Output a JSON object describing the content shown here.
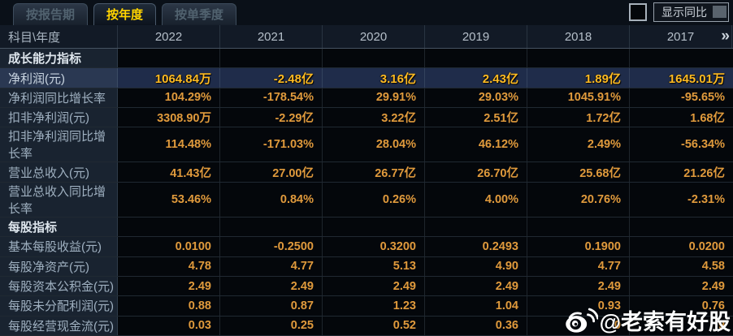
{
  "tabs": [
    {
      "label": "按报告期",
      "active": false
    },
    {
      "label": "按年度",
      "active": true
    },
    {
      "label": "按单季度",
      "active": false
    }
  ],
  "controls": {
    "show_yoy_label": "显示同比",
    "checkbox_checked": false
  },
  "table": {
    "corner_label": "科目\\年度",
    "years": [
      "2022",
      "2021",
      "2020",
      "2019",
      "2018",
      "2017"
    ],
    "more_columns_glyph": "»",
    "rows": [
      {
        "type": "section",
        "label": "成长能力指标"
      },
      {
        "type": "data",
        "label": "净利润(元)",
        "highlight": true,
        "values": [
          "1064.84万",
          "-2.48亿",
          "3.16亿",
          "2.43亿",
          "1.89亿",
          "1645.01万"
        ]
      },
      {
        "type": "data",
        "label": "净利润同比增长率",
        "values": [
          "104.29%",
          "-178.54%",
          "29.91%",
          "29.03%",
          "1045.91%",
          "-95.65%"
        ]
      },
      {
        "type": "data",
        "label": "扣非净利润(元)",
        "values": [
          "3308.90万",
          "-2.29亿",
          "3.22亿",
          "2.51亿",
          "1.72亿",
          "1.68亿"
        ]
      },
      {
        "type": "data",
        "label": "扣非净利润同比增长率",
        "values": [
          "114.48%",
          "-171.03%",
          "28.04%",
          "46.12%",
          "2.49%",
          "-56.34%"
        ]
      },
      {
        "type": "data",
        "label": "营业总收入(元)",
        "values": [
          "41.43亿",
          "27.00亿",
          "26.77亿",
          "26.70亿",
          "25.68亿",
          "21.26亿"
        ]
      },
      {
        "type": "data",
        "label": "营业总收入同比增长率",
        "values": [
          "53.46%",
          "0.84%",
          "0.26%",
          "4.00%",
          "20.76%",
          "-2.31%"
        ]
      },
      {
        "type": "section",
        "label": "每股指标"
      },
      {
        "type": "data",
        "label": "基本每股收益(元)",
        "values": [
          "0.0100",
          "-0.2500",
          "0.3200",
          "0.2493",
          "0.1900",
          "0.0200"
        ]
      },
      {
        "type": "data",
        "label": "每股净资产(元)",
        "values": [
          "4.78",
          "4.77",
          "5.13",
          "4.90",
          "4.77",
          "4.58"
        ]
      },
      {
        "type": "data",
        "label": "每股资本公积金(元)",
        "values": [
          "2.49",
          "2.49",
          "2.49",
          "2.49",
          "2.49",
          "2.49"
        ]
      },
      {
        "type": "data",
        "label": "每股未分配利润(元)",
        "values": [
          "0.88",
          "0.87",
          "1.23",
          "1.04",
          "0.93",
          "0.76"
        ]
      },
      {
        "type": "data",
        "label": "每股经营现金流(元)",
        "values": [
          "0.03",
          "0.25",
          "0.52",
          "0.36",
          "0",
          "9"
        ]
      }
    ]
  },
  "watermark": {
    "icon": "weibo-icon",
    "text": "@老索有好股"
  },
  "colors": {
    "tab_active_text": "#ffd300",
    "value_text": "#e09a3c",
    "highlight_value_text": "#ffbb22",
    "highlight_row_bg": "#1f2c4a",
    "label_column_bg": "#192330",
    "header_bg": "#121a26",
    "cell_bg": "#04070b"
  }
}
